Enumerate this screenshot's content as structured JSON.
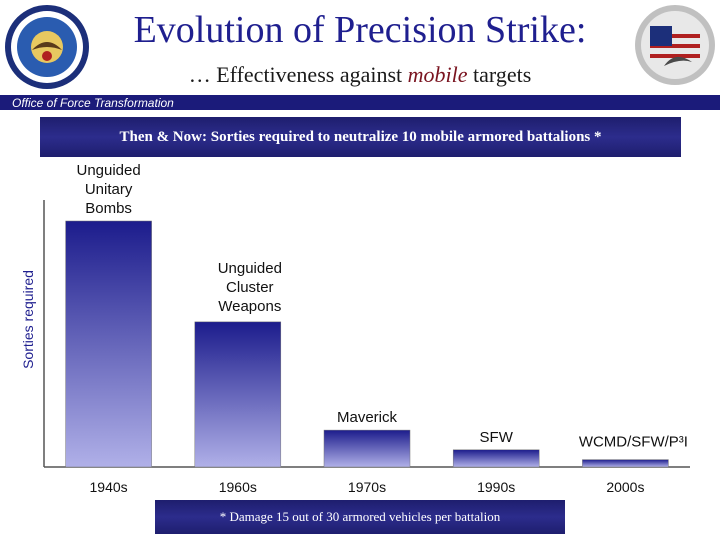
{
  "header": {
    "title": "Evolution of Precision Strike:",
    "subtitle_prefix": "… Effectiveness against ",
    "subtitle_emphasis": "mobile",
    "subtitle_suffix": " targets",
    "office": "Office of Force Transformation"
  },
  "colors": {
    "title": "#1f1f8f",
    "banner": "#1e1e6e",
    "bar_top": "#1c1c8c",
    "bar_bottom": "#b0b0e8"
  },
  "chart_data": {
    "type": "bar",
    "title": "Then & Now: Sorties required to neutralize 10 mobile armored battalions *",
    "xlabel": "",
    "ylabel": "Sorties required",
    "categories": [
      "1940s",
      "1960s",
      "1970s",
      "1990s",
      "2000s"
    ],
    "series": [
      {
        "name": "Sorties required",
        "values": [
          100,
          59,
          15,
          7,
          3
        ],
        "labels": [
          "Unguided\nUnitary\nBombs",
          "Unguided\nCluster\nWeapons",
          "Maverick",
          "SFW",
          "WCMD/SFW/P³I"
        ]
      }
    ],
    "ylim": [
      0,
      100
    ],
    "grid": false,
    "y_ticks_shown": false
  },
  "footnote": "* Damage 15 out of 30 armored vehicles per battalion"
}
